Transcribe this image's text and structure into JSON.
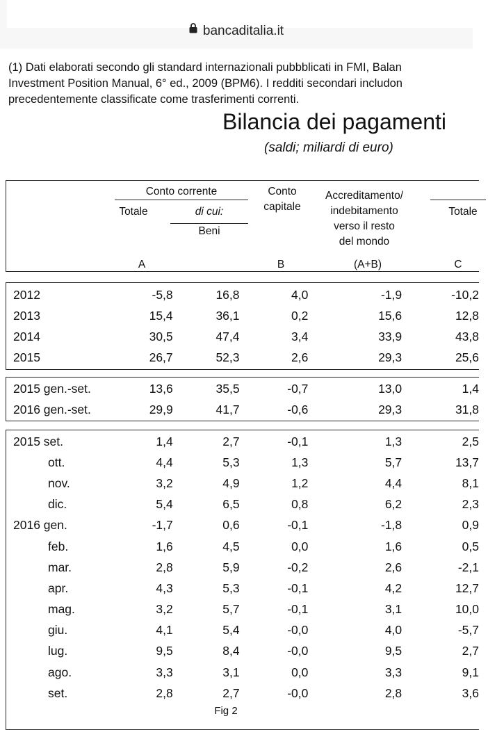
{
  "browser": {
    "url": "bancaditalia.it"
  },
  "note": {
    "lines": [
      "(1) Dati elaborati secondo gli standard internazionali pubbblicati in FMI, Balan",
      "Investment Position Manual, 6° ed., 2009 (BPM6). I redditi secondari includon",
      "precedentemente classificate come trasferimenti correnti."
    ]
  },
  "title": "Bilancia dei pagamenti",
  "subtitle": "(saldi; miliardi di euro)",
  "header": {
    "conto_corrente": "Conto corrente",
    "totale": "Totale",
    "di_cui": "di cui:",
    "beni": "Beni",
    "conto_capitale": [
      "Conto",
      "capitale"
    ],
    "accreditamento": [
      "Accreditamento/",
      "indebitamento",
      "verso il resto",
      "del mondo"
    ],
    "totale_c": "Totale",
    "letters": {
      "a": "A",
      "b": "B",
      "apb": "(A+B)",
      "c": "C"
    }
  },
  "annual": [
    [
      "2012",
      "-5,8",
      "16,8",
      "4,0",
      "-1,9",
      "-10,2"
    ],
    [
      "2013",
      "15,4",
      "36,1",
      "0,2",
      "15,6",
      "12,8"
    ],
    [
      "2014",
      "30,5",
      "47,4",
      "3,4",
      "33,9",
      "43,8"
    ],
    [
      "2015",
      "26,7",
      "52,3",
      "2,6",
      "29,3",
      "25,6"
    ]
  ],
  "periods": [
    [
      "2015 gen.-set.",
      "13,6",
      "35,5",
      "-0,7",
      "13,0",
      "1,4"
    ],
    [
      "2016 gen.-set.",
      "29,9",
      "41,7",
      "-0,6",
      "29,3",
      "31,8"
    ]
  ],
  "monthly": [
    [
      "2015 set.",
      "1,4",
      "2,7",
      "-0,1",
      "1,3",
      "2,5"
    ],
    [
      "ott.",
      "4,4",
      "5,3",
      "1,3",
      "5,7",
      "13,7"
    ],
    [
      "nov.",
      "3,2",
      "4,9",
      "1,2",
      "4,4",
      "8,1"
    ],
    [
      "dic.",
      "5,4",
      "6,5",
      "0,8",
      "6,2",
      "2,3"
    ],
    [
      "2016 gen.",
      "-1,7",
      "0,6",
      "-0,1",
      "-1,8",
      "0,9"
    ],
    [
      "feb.",
      "1,6",
      "4,5",
      "0,0",
      "1,6",
      "0,5"
    ],
    [
      "mar.",
      "2,8",
      "5,9",
      "-0,2",
      "2,6",
      "-2,1"
    ],
    [
      "apr.",
      "4,3",
      "5,3",
      "-0,1",
      "4,2",
      "12,7"
    ],
    [
      "mag.",
      "3,2",
      "5,7",
      "-0,1",
      "3,1",
      "10,0"
    ],
    [
      "giu.",
      "4,1",
      "5,4",
      "-0,0",
      "4,0",
      "-5,7"
    ],
    [
      "lug.",
      "9,5",
      "8,4",
      "-0,0",
      "9,5",
      "2,7"
    ],
    [
      "ago.",
      "3,3",
      "3,1",
      "0,0",
      "3,3",
      "9,1"
    ],
    [
      "set.",
      "2,8",
      "2,7",
      "-0,0",
      "2,8",
      "3,6"
    ]
  ],
  "caption": "Fig 2"
}
